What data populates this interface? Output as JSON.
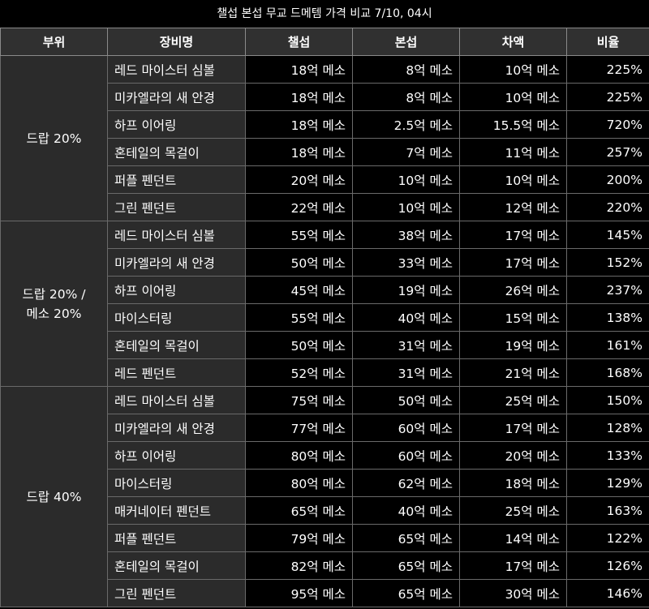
{
  "title": "챌섭 본섭 무교 드메템 가격 비교 7/10, 04시",
  "headers": [
    "부위",
    "장비명",
    "챌섭",
    "본섭",
    "차액",
    "비율"
  ],
  "groups": [
    {
      "part": "드랍 20%",
      "rows": [
        {
          "name": "레드 마이스터 심볼",
          "chal": "18억 메소",
          "main": "8억 메소",
          "diff": "10억 메소",
          "ratio": "225%"
        },
        {
          "name": "미카엘라의 새 안경",
          "chal": "18억 메소",
          "main": "8억 메소",
          "diff": "10억 메소",
          "ratio": "225%"
        },
        {
          "name": "하프 이어링",
          "chal": "18억 메소",
          "main": "2.5억 메소",
          "diff": "15.5억 메소",
          "ratio": "720%"
        },
        {
          "name": "혼테일의 목걸이",
          "chal": "18억 메소",
          "main": "7억 메소",
          "diff": "11억 메소",
          "ratio": "257%"
        },
        {
          "name": "퍼플 펜던트",
          "chal": "20억 메소",
          "main": "10억 메소",
          "diff": "10억 메소",
          "ratio": "200%"
        },
        {
          "name": "그린 펜던트",
          "chal": "22억 메소",
          "main": "10억 메소",
          "diff": "12억 메소",
          "ratio": "220%"
        }
      ]
    },
    {
      "part": "드랍 20% / 메소 20%",
      "rows": [
        {
          "name": "레드 마이스터 심볼",
          "chal": "55억 메소",
          "main": "38억 메소",
          "diff": "17억 메소",
          "ratio": "145%"
        },
        {
          "name": "미카엘라의 새 안경",
          "chal": "50억 메소",
          "main": "33억 메소",
          "diff": "17억 메소",
          "ratio": "152%"
        },
        {
          "name": "하프 이어링",
          "chal": "45억 메소",
          "main": "19억 메소",
          "diff": "26억 메소",
          "ratio": "237%"
        },
        {
          "name": "마이스터링",
          "chal": "55억 메소",
          "main": "40억 메소",
          "diff": "15억 메소",
          "ratio": "138%"
        },
        {
          "name": "혼테일의 목걸이",
          "chal": "50억 메소",
          "main": "31억 메소",
          "diff": "19억 메소",
          "ratio": "161%"
        },
        {
          "name": "레드 펜던트",
          "chal": "52억 메소",
          "main": "31억 메소",
          "diff": "21억 메소",
          "ratio": "168%"
        }
      ]
    },
    {
      "part": "드랍 40%",
      "rows": [
        {
          "name": "레드 마이스터 심볼",
          "chal": "75억 메소",
          "main": "50억 메소",
          "diff": "25억 메소",
          "ratio": "150%"
        },
        {
          "name": "미카엘라의 새 안경",
          "chal": "77억 메소",
          "main": "60억 메소",
          "diff": "17억 메소",
          "ratio": "128%"
        },
        {
          "name": "하프 이어링",
          "chal": "80억 메소",
          "main": "60억 메소",
          "diff": "20억 메소",
          "ratio": "133%"
        },
        {
          "name": "마이스터링",
          "chal": "80억 메소",
          "main": "62억 메소",
          "diff": "18억 메소",
          "ratio": "129%"
        },
        {
          "name": "매커네이터 펜던트",
          "chal": "65억 메소",
          "main": "40억 메소",
          "diff": "25억 메소",
          "ratio": "163%"
        },
        {
          "name": "퍼플 펜던트",
          "chal": "79억 메소",
          "main": "65억 메소",
          "diff": "14억 메소",
          "ratio": "122%"
        },
        {
          "name": "혼테일의 목걸이",
          "chal": "82억 메소",
          "main": "65억 메소",
          "diff": "17억 메소",
          "ratio": "126%"
        },
        {
          "name": "그린 펜던트",
          "chal": "95억 메소",
          "main": "65억 메소",
          "diff": "30억 메소",
          "ratio": "146%"
        }
      ]
    }
  ]
}
